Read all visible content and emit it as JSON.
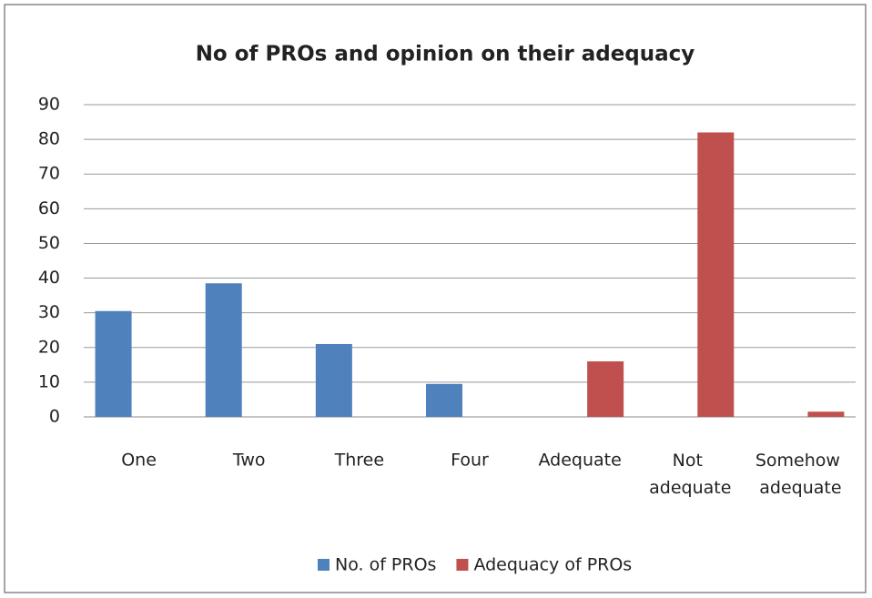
{
  "chart_data": {
    "type": "bar",
    "title": "No of PROs and opinion on their adequacy",
    "categories": [
      "One",
      "Two",
      "Three",
      "Four",
      "Adequate",
      "Not adequate",
      "Somehow adequate"
    ],
    "series": [
      {
        "name": "No. of PROs",
        "color": "#4f81bd",
        "values": [
          30.5,
          38.5,
          21,
          9.5,
          null,
          null,
          null
        ]
      },
      {
        "name": "Adequacy of PROs",
        "color": "#c0504d",
        "values": [
          null,
          null,
          null,
          null,
          16,
          82,
          1.5
        ]
      }
    ],
    "ylim": [
      0,
      90
    ],
    "yticks": [
      0,
      10,
      20,
      30,
      40,
      50,
      60,
      70,
      80,
      90
    ],
    "grid": true,
    "legend": "bottom"
  }
}
